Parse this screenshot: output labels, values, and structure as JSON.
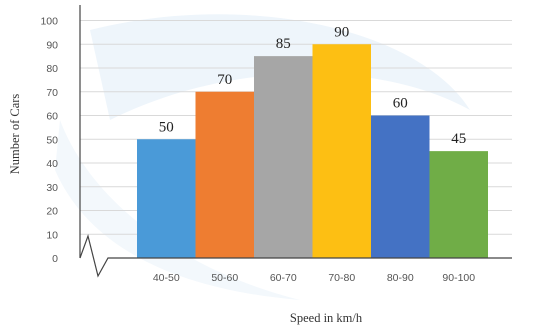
{
  "chart_data": {
    "type": "bar",
    "title": "",
    "xlabel": "Speed in km/h",
    "ylabel": "Number of Cars",
    "categories": [
      "40-50",
      "50-60",
      "60-70",
      "70-80",
      "80-90",
      "90-100"
    ],
    "values": [
      50,
      70,
      85,
      90,
      60,
      45
    ],
    "data_labels": [
      "50",
      "70",
      "85",
      "90",
      "60",
      "45"
    ],
    "y_ticks": [
      "0",
      "10",
      "20",
      "30",
      "40",
      "50",
      "60",
      "70",
      "80",
      "90",
      "100"
    ],
    "ylim": [
      0,
      100
    ],
    "grid": true,
    "legend": "none",
    "bar_colors": [
      "#4a9ad8",
      "#ee7d31",
      "#a6a6a6",
      "#fdbf13",
      "#4472c4",
      "#70ad47"
    ],
    "x_axis_break": true
  }
}
